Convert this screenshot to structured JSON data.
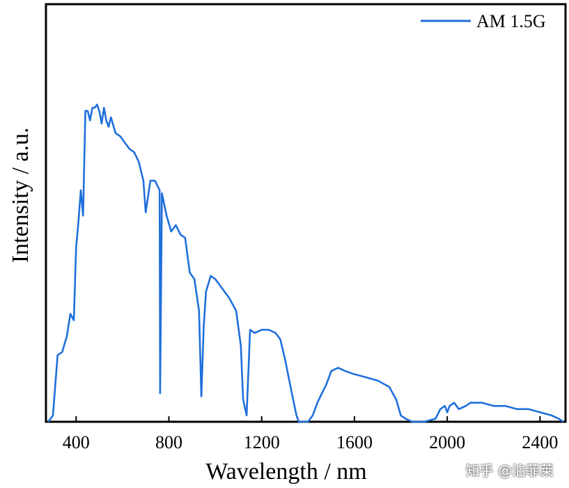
{
  "watermark": "知乎 @泊菲莱",
  "chart_data": {
    "type": "line",
    "title": "",
    "xlabel": "Wavelength / nm",
    "ylabel": "Intensity / a.u.",
    "xlim": [
      270,
      2510
    ],
    "ylim": [
      0,
      1.0
    ],
    "x_ticks": [
      400,
      800,
      1200,
      1600,
      2000,
      2400
    ],
    "x_tick_labels": [
      "400",
      "800",
      "1200",
      "1600",
      "2000",
      "2400"
    ],
    "y_tick_labels_visible": false,
    "grid": false,
    "legend": {
      "position": "top-right",
      "entries": [
        "AM 1.5G"
      ]
    },
    "series": [
      {
        "name": "AM 1.5G",
        "color": "#1f6fdc",
        "x": [
          280,
          300,
          320,
          340,
          360,
          375,
          390,
          400,
          410,
          420,
          430,
          440,
          450,
          460,
          470,
          480,
          490,
          500,
          510,
          520,
          530,
          540,
          550,
          570,
          590,
          610,
          630,
          650,
          670,
          690,
          700,
          720,
          740,
          760,
          762,
          770,
          790,
          810,
          830,
          850,
          870,
          890,
          910,
          930,
          940,
          950,
          960,
          980,
          1000,
          1030,
          1060,
          1090,
          1110,
          1120,
          1135,
          1150,
          1170,
          1200,
          1230,
          1260,
          1280,
          1300,
          1330,
          1350,
          1360,
          1380,
          1400,
          1420,
          1440,
          1460,
          1480,
          1500,
          1530,
          1560,
          1600,
          1650,
          1700,
          1750,
          1780,
          1800,
          1820,
          1850,
          1900,
          1950,
          1970,
          1990,
          2000,
          2010,
          2030,
          2050,
          2080,
          2100,
          2150,
          2200,
          2250,
          2300,
          2350,
          2400,
          2450,
          2480,
          2500
        ],
        "values": [
          0.0,
          0.02,
          0.21,
          0.22,
          0.27,
          0.34,
          0.32,
          0.55,
          0.63,
          0.73,
          0.65,
          0.98,
          0.98,
          0.95,
          0.99,
          0.99,
          1.0,
          0.98,
          0.94,
          0.99,
          0.95,
          0.93,
          0.96,
          0.91,
          0.9,
          0.88,
          0.86,
          0.85,
          0.82,
          0.76,
          0.66,
          0.76,
          0.76,
          0.73,
          0.09,
          0.72,
          0.65,
          0.6,
          0.62,
          0.59,
          0.58,
          0.47,
          0.45,
          0.35,
          0.08,
          0.3,
          0.41,
          0.46,
          0.45,
          0.42,
          0.39,
          0.35,
          0.24,
          0.07,
          0.02,
          0.29,
          0.28,
          0.29,
          0.29,
          0.28,
          0.26,
          0.2,
          0.09,
          0.02,
          0.0,
          0.0,
          0.0,
          0.02,
          0.06,
          0.09,
          0.12,
          0.16,
          0.17,
          0.16,
          0.15,
          0.14,
          0.13,
          0.11,
          0.07,
          0.02,
          0.01,
          0.0,
          0.0,
          0.01,
          0.04,
          0.05,
          0.03,
          0.05,
          0.06,
          0.04,
          0.05,
          0.06,
          0.06,
          0.05,
          0.05,
          0.04,
          0.04,
          0.03,
          0.02,
          0.01,
          0.0
        ]
      }
    ]
  }
}
